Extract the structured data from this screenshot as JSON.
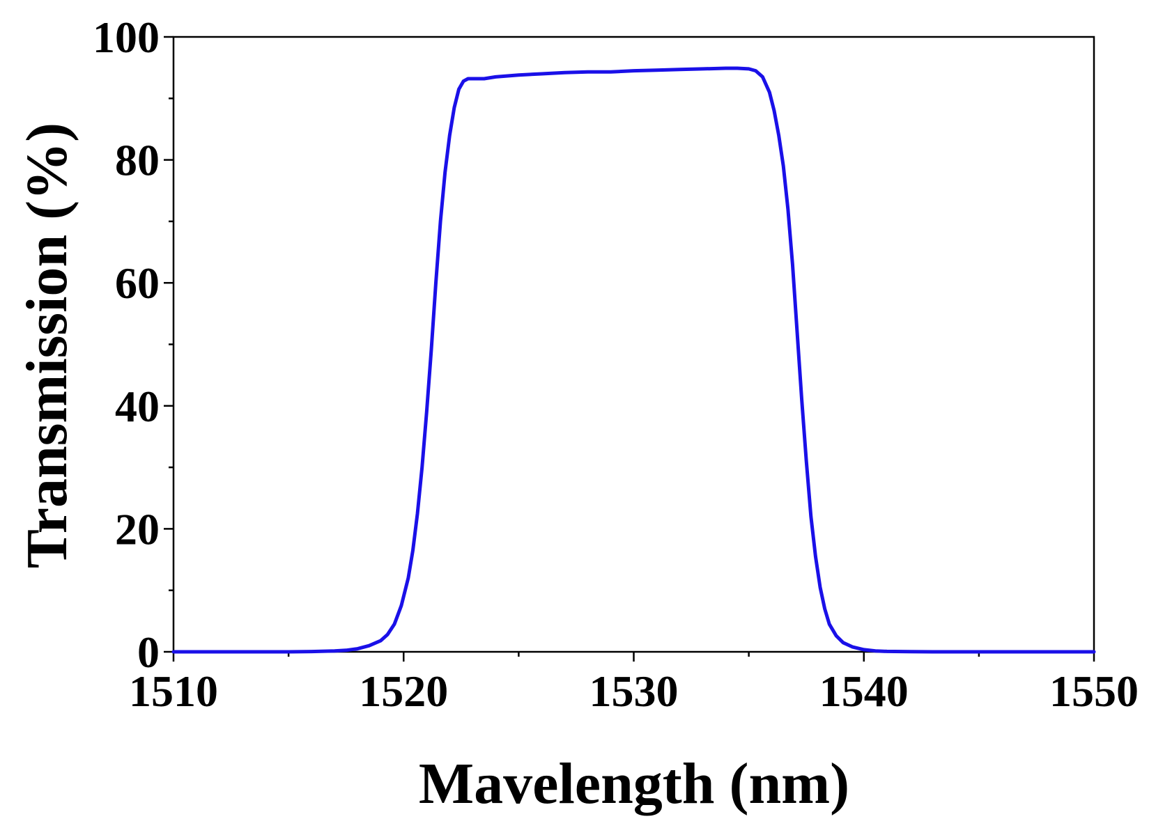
{
  "chart_data": {
    "type": "line",
    "title": "",
    "xlabel": "Mavelength (nm)",
    "ylabel": "Transmission (%)",
    "xlim": [
      1510,
      1550
    ],
    "ylim": [
      0,
      100
    ],
    "x_ticks": [
      1510,
      1520,
      1530,
      1540,
      1550
    ],
    "x_tick_labels": [
      "1510",
      "1520",
      "1530",
      "1540",
      "1550"
    ],
    "x_minor_ticks": [
      1515,
      1525,
      1535,
      1545
    ],
    "y_ticks": [
      0,
      20,
      40,
      60,
      80,
      100
    ],
    "y_tick_labels": [
      "0",
      "20",
      "40",
      "60",
      "80",
      "100"
    ],
    "y_minor_ticks": [
      10,
      30,
      50,
      70,
      90
    ],
    "grid": false,
    "legend": "none",
    "series": [
      {
        "color": "#1a10e8",
        "x": [
          1510,
          1512,
          1514,
          1515,
          1516,
          1517,
          1517.5,
          1518,
          1518.5,
          1519,
          1519.3,
          1519.6,
          1519.9,
          1520.2,
          1520.4,
          1520.6,
          1520.8,
          1521.0,
          1521.2,
          1521.4,
          1521.6,
          1521.8,
          1522.0,
          1522.2,
          1522.4,
          1522.6,
          1522.8,
          1523.0,
          1523.5,
          1524,
          1525,
          1526,
          1527,
          1528,
          1529,
          1530,
          1531,
          1532,
          1533,
          1534,
          1534.5,
          1535,
          1535.3,
          1535.6,
          1535.9,
          1536.1,
          1536.3,
          1536.5,
          1536.7,
          1536.9,
          1537.1,
          1537.3,
          1537.5,
          1537.7,
          1537.9,
          1538.1,
          1538.3,
          1538.5,
          1538.8,
          1539.1,
          1539.5,
          1540,
          1540.5,
          1541,
          1542,
          1543,
          1545,
          1548,
          1550
        ],
        "y": [
          0,
          0,
          0,
          0,
          0.05,
          0.15,
          0.25,
          0.5,
          1.0,
          1.8,
          2.8,
          4.5,
          7.5,
          12,
          16.5,
          22.5,
          30,
          39,
          49,
          60,
          70,
          78,
          84,
          88.5,
          91.5,
          92.8,
          93.2,
          93.2,
          93.2,
          93.5,
          93.8,
          94.0,
          94.2,
          94.3,
          94.3,
          94.5,
          94.6,
          94.7,
          94.8,
          94.9,
          94.9,
          94.8,
          94.5,
          93.5,
          91,
          88,
          84,
          79,
          72,
          63,
          52,
          41,
          31,
          22,
          15.5,
          10.5,
          7,
          4.5,
          2.6,
          1.5,
          0.8,
          0.35,
          0.15,
          0.07,
          0.02,
          0,
          0,
          0,
          0
        ]
      }
    ]
  }
}
